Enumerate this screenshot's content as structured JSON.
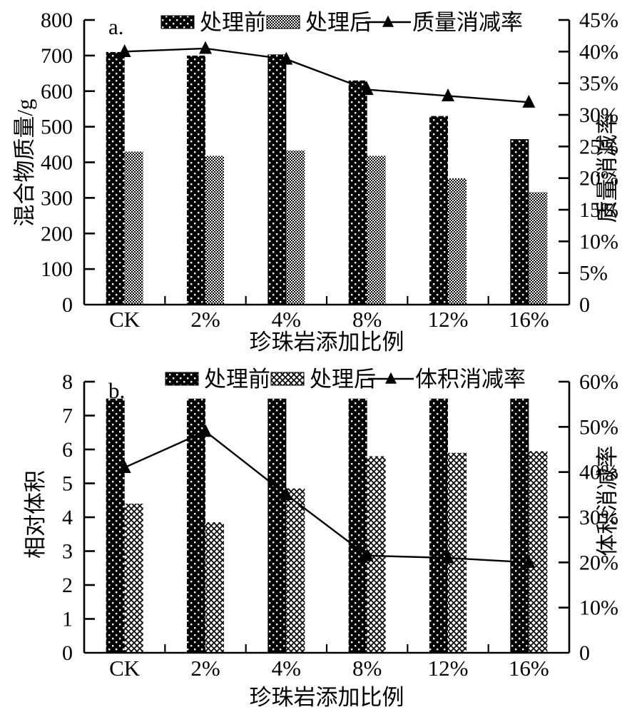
{
  "colors": {
    "ink": "#000000",
    "background": "#ffffff"
  },
  "chart_data": [
    {
      "type": "bar+line",
      "panel_label": "a.",
      "categories": [
        "CK",
        "2%",
        "4%",
        "8%",
        "12%",
        "16%"
      ],
      "xlabel": "珍珠岩添加比例",
      "ylabel_left": "混合物质量/g",
      "ylabel_right": "质量消减率",
      "y_left": {
        "min": 0,
        "max": 800,
        "step": 100
      },
      "y_right": {
        "min": 0,
        "max": 45,
        "step": 5,
        "suffix": "%"
      },
      "bar_series": [
        {
          "name": "处理前",
          "pattern": "dots",
          "values": [
            710,
            700,
            703,
            630,
            530,
            465
          ]
        },
        {
          "name": "处理后",
          "pattern": "checker",
          "values": [
            430,
            418,
            433,
            418,
            355,
            316
          ]
        }
      ],
      "line_series": {
        "name": "质量消减率",
        "axis": "right",
        "marker": "triangle",
        "values": [
          40,
          40.5,
          38.8,
          34,
          33,
          32
        ]
      },
      "legend_position": "top",
      "grid": false
    },
    {
      "type": "bar+line",
      "panel_label": "b.",
      "categories": [
        "CK",
        "2%",
        "4%",
        "8%",
        "12%",
        "16%"
      ],
      "xlabel": "珍珠岩添加比例",
      "ylabel_left": "相对体积",
      "ylabel_right": "体积消减率",
      "y_left": {
        "min": 0,
        "max": 8,
        "step": 1
      },
      "y_right": {
        "min": 0,
        "max": 60,
        "step": 10,
        "suffix": "%"
      },
      "bar_series": [
        {
          "name": "处理前",
          "pattern": "dots",
          "values": [
            7.5,
            7.5,
            7.5,
            7.5,
            7.5,
            7.5
          ]
        },
        {
          "name": "处理后",
          "pattern": "crosshatch",
          "values": [
            4.4,
            3.85,
            4.85,
            5.8,
            5.9,
            5.95
          ]
        }
      ],
      "line_series": {
        "name": "体积消减率",
        "axis": "right",
        "marker": "triangle",
        "values": [
          41,
          49,
          35,
          21.5,
          21,
          20
        ]
      },
      "legend_position": "top",
      "grid": false
    }
  ]
}
